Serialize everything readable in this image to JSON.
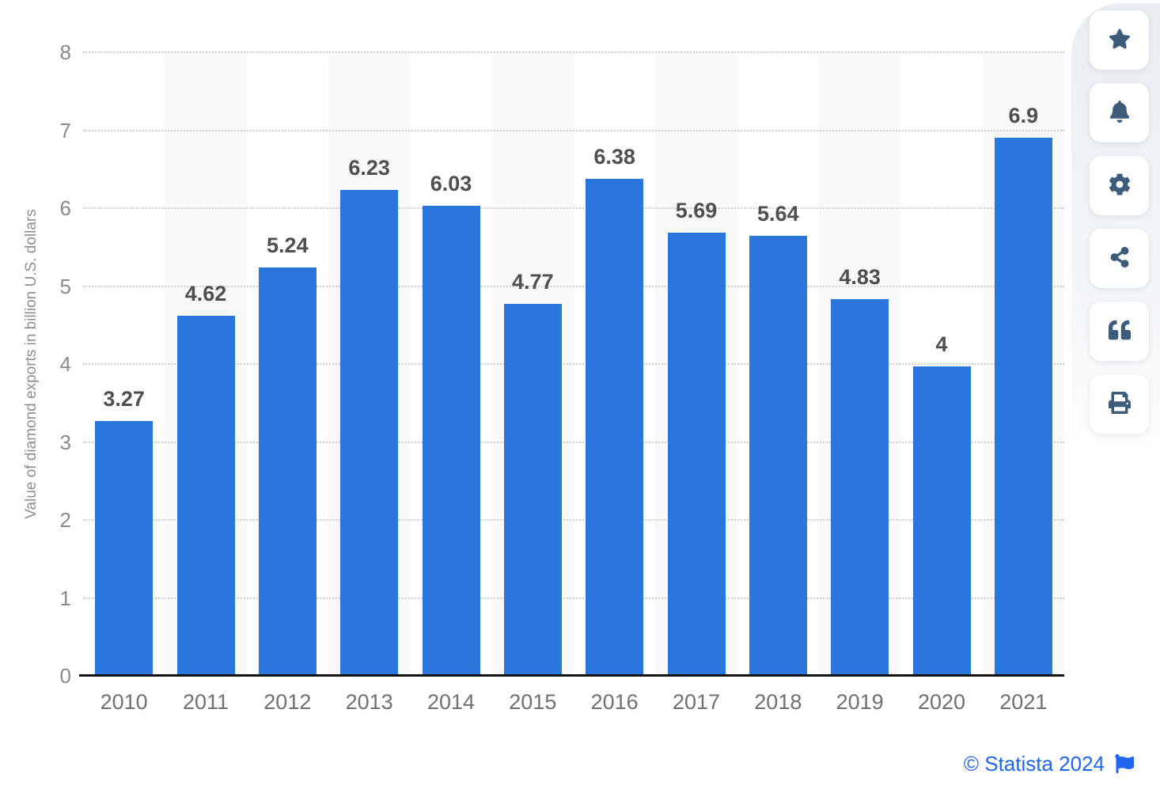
{
  "chart_data": {
    "type": "bar",
    "title": "",
    "categories": [
      "2010",
      "2011",
      "2012",
      "2013",
      "2014",
      "2015",
      "2016",
      "2017",
      "2018",
      "2019",
      "2020",
      "2021"
    ],
    "values": [
      3.27,
      4.62,
      5.24,
      6.23,
      6.03,
      4.77,
      6.38,
      5.69,
      5.64,
      4.83,
      3.97,
      6.9
    ],
    "value_labels": [
      "3.27",
      "4.62",
      "5.24",
      "6.23",
      "6.03",
      "4.77",
      "6.38",
      "5.69",
      "5.64",
      "4.83",
      "4",
      "6.9"
    ],
    "xlabel": "",
    "ylabel": "Value of diamond exports in billion U.S. dollars",
    "ylim": [
      0,
      8
    ],
    "yticks": [
      0,
      1,
      2,
      3,
      4,
      5,
      6,
      7,
      8
    ],
    "grid": "horizontal-dotted",
    "legend": "none",
    "bar_color": "#2b76dd",
    "band_color": "#f9f9fa"
  },
  "toolbar": {
    "icon_color": "#3d5c7c",
    "items": [
      {
        "label": "favorite",
        "icon": "star-icon"
      },
      {
        "label": "notifications",
        "icon": "bell-icon"
      },
      {
        "label": "settings",
        "icon": "gear-icon"
      },
      {
        "label": "share",
        "icon": "share-icon"
      },
      {
        "label": "cite",
        "icon": "quote-icon"
      },
      {
        "label": "print",
        "icon": "printer-icon"
      }
    ]
  },
  "footer": {
    "attribution": "© Statista 2024",
    "link_color": "#2065f0",
    "flag_icon": "flag-icon"
  }
}
